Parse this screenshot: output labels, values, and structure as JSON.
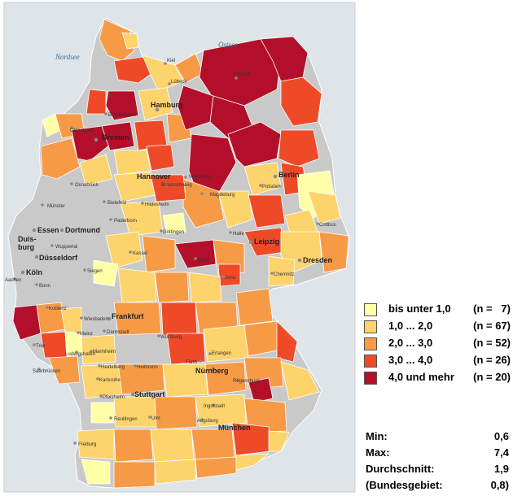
{
  "colors": {
    "background": "#ffffff",
    "sea": "#dfe4e8",
    "nodata": "#c9c9c9",
    "border_line": "#e9e9e9",
    "class_1": "#ffffa8",
    "class_2": "#fdd36b",
    "class_3": "#f79a45",
    "class_4": "#ee4a28",
    "class_5": "#b30f2b"
  },
  "sea_labels": {
    "nordsee": "Nordsee",
    "ostsee": "Ostsee"
  },
  "cities": {
    "kiel": "Kiel",
    "luebeck": "Lübeck",
    "rostock": "Rostock",
    "hamburg": "Hamburg",
    "bremerhaven": "Bremerhaven",
    "oldenburg": "Oldenburg",
    "bremen": "Bremen",
    "osnabrueck": "Osnabrück",
    "hannover": "Hannover",
    "wolfsburg": "Wolfsburg",
    "braunschweig": "Braunschweig",
    "berlin": "Berlin",
    "potsdam": "Potsdam",
    "magdeburg": "Magdeburg",
    "muenster": "Münster",
    "bielefeld": "Bielefeld",
    "hildesheim": "Hildesheim",
    "essen": "Essen",
    "dortmund": "Dortmund",
    "duisburg_a": "Duis-",
    "duisburg_b": "burg",
    "wuppertal": "Wuppertal",
    "duesseldorf": "Düsseldorf",
    "paderborn": "Paderborn",
    "goettingen": "Göttingen",
    "halle": "Halle",
    "leipzig": "Leipzig",
    "cottbus": "Cottbus",
    "dresden": "Dresden",
    "koeln": "Köln",
    "aachen": "Aachen",
    "bonn": "Bonn",
    "siegen": "Siegen",
    "kassel": "Kassel",
    "erfurt": "Erfurt",
    "jena": "Jena",
    "chemnitz": "Chemnitz",
    "koblenz": "Koblenz",
    "wiesbaden": "Wiesbaden",
    "frankfurt": "Frankfurt",
    "mainz": "Mainz",
    "darmstadt": "Darmstadt",
    "trier": "Trier",
    "ludwigshafen": "Ludwigshafen",
    "mannheim": "Mannheim",
    "wuerzburg": "Würzburg",
    "heidelberg": "Heidelberg",
    "fuerth": "Fürth",
    "erlangen": "Erlangen",
    "nuernberg": "Nürnberg",
    "saarbruecken": "Saarbrücken",
    "karlsruhe": "Karlsruhe",
    "regensburg": "Regensburg",
    "heilbronn": "Heilbronn",
    "pforzheim": "Pforzheim",
    "stuttgart": "Stuttgart",
    "ingolstadt": "Ingolstadt",
    "reutlingen": "Reutlingen",
    "ulm": "Ulm",
    "augsburg": "Augsburg",
    "muenchen": "München",
    "freiburg": "Freiburg"
  },
  "legend": {
    "items": [
      {
        "label": "bis unter 1,0",
        "count": "(n =   7)",
        "color": "#ffffa8"
      },
      {
        "label": "1,0 ... 2,0",
        "count": "(n = 67)",
        "color": "#fdd36b"
      },
      {
        "label": "2,0 ... 3,0",
        "count": "(n = 52)",
        "color": "#f79a45"
      },
      {
        "label": "3,0 ... 4,0",
        "count": "(n = 26)",
        "color": "#ee4a28"
      },
      {
        "label": "4,0 und mehr",
        "count": "(n = 20)",
        "color": "#b30f2b"
      }
    ]
  },
  "stats": {
    "min_label": "Min:",
    "min_value": "0,6",
    "max_label": "Max:",
    "max_value": "7,4",
    "mean_label": "Durchschnitt:",
    "mean_value": "1,9",
    "national_label": "(Bundesgebiet:",
    "national_value": "0,8)"
  }
}
